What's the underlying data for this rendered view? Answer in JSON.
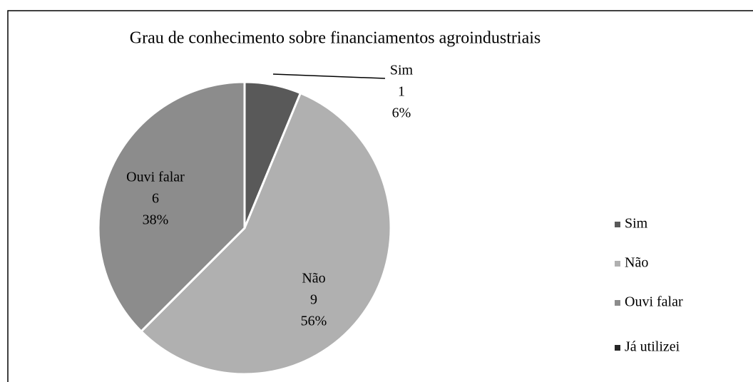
{
  "chart_data": {
    "type": "pie",
    "title": "Grau de conhecimento sobre financiamentos agroindustriais",
    "categories": [
      "Sim",
      "Não",
      "Ouvi falar",
      "Já utilizei"
    ],
    "values": [
      1,
      9,
      6,
      0
    ],
    "value_labels": [
      "6%",
      "56%",
      "38%",
      null
    ],
    "colors": [
      "#595959",
      "#b0b0b0",
      "#8c8c8c",
      "#262626"
    ],
    "legend": "right"
  }
}
